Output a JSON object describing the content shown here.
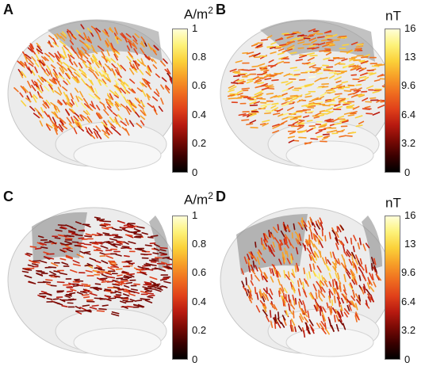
{
  "panels": [
    {
      "label": "A",
      "unit": "A/m",
      "unit_sup": "2",
      "ticks": [
        "1",
        "0.8",
        "0.6",
        "0.4",
        "0.2",
        "0"
      ],
      "field": "current-density"
    },
    {
      "label": "B",
      "unit": "nT",
      "unit_sup": "",
      "ticks": [
        "16",
        "13",
        "9.6",
        "6.4",
        "3.2",
        "0"
      ],
      "field": "magnetic-field"
    },
    {
      "label": "C",
      "unit": "A/m",
      "unit_sup": "2",
      "ticks": [
        "1",
        "0.8",
        "0.6",
        "0.4",
        "0.2",
        "0"
      ],
      "field": "current-density"
    },
    {
      "label": "D",
      "unit": "nT",
      "unit_sup": "",
      "ticks": [
        "16",
        "13",
        "9.6",
        "6.4",
        "3.2",
        "0"
      ],
      "field": "magnetic-field"
    }
  ],
  "colormap": [
    "#000000",
    "#3a0000",
    "#7a0a05",
    "#b81a10",
    "#e0401a",
    "#f07020",
    "#f7a028",
    "#fbd23a",
    "#fdf27a",
    "#ffffd8"
  ]
}
